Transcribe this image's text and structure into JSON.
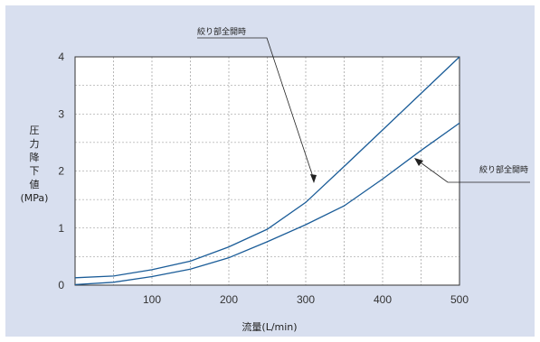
{
  "chart_data": {
    "type": "line",
    "title": "",
    "xlabel": "流量(L/min)",
    "ylabel_chars": [
      "圧",
      "力",
      "降",
      "下",
      "値"
    ],
    "ylabel_unit": "(MPa)",
    "xlim": [
      0,
      500
    ],
    "ylim": [
      0,
      4
    ],
    "x_ticks": [
      100,
      200,
      300,
      400,
      500
    ],
    "y_ticks": [
      0,
      1,
      2,
      3,
      4
    ],
    "grid": true,
    "series": [
      {
        "x": [
          0,
          50,
          100,
          150,
          200,
          250,
          300,
          350,
          400,
          450,
          500
        ],
        "values": [
          0.13,
          0.16,
          0.27,
          0.42,
          0.67,
          0.98,
          1.45,
          2.08,
          2.72,
          3.36,
          4.0
        ]
      },
      {
        "x": [
          0,
          50,
          100,
          150,
          200,
          250,
          300,
          350,
          400,
          450,
          500
        ],
        "values": [
          0.01,
          0.05,
          0.15,
          0.28,
          0.48,
          0.76,
          1.06,
          1.39,
          1.86,
          2.36,
          2.84
        ]
      }
    ],
    "annotations": [
      {
        "text": "絞り部全開時",
        "target_series": 0
      },
      {
        "text": "絞り部全開時",
        "target_series": 1
      }
    ],
    "colors": {
      "background": "#d8dfef",
      "plot": "#ffffff",
      "series": "#1a5c98",
      "grid": "#8a8a8a"
    }
  }
}
